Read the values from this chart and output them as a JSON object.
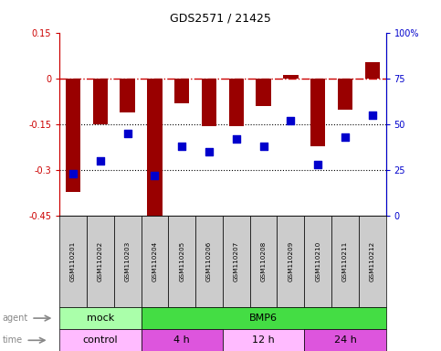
{
  "title": "GDS2571 / 21425",
  "samples": [
    "GSM110201",
    "GSM110202",
    "GSM110203",
    "GSM110204",
    "GSM110205",
    "GSM110206",
    "GSM110207",
    "GSM110208",
    "GSM110209",
    "GSM110210",
    "GSM110211",
    "GSM110212"
  ],
  "log2_ratio": [
    -0.37,
    -0.15,
    -0.11,
    -0.48,
    -0.08,
    -0.155,
    -0.155,
    -0.09,
    0.012,
    -0.22,
    -0.1,
    0.055
  ],
  "percentile": [
    23,
    30,
    45,
    22,
    38,
    35,
    42,
    38,
    52,
    28,
    43,
    55
  ],
  "ylim_left": [
    -0.45,
    0.15
  ],
  "ylim_right": [
    0,
    100
  ],
  "yticks_left": [
    -0.45,
    -0.3,
    -0.15,
    0.0,
    0.15
  ],
  "yticks_left_labels": [
    "-0.45",
    "-0.3",
    "-0.15",
    "0",
    "0.15"
  ],
  "yticks_right": [
    0,
    25,
    50,
    75,
    100
  ],
  "yticks_right_labels": [
    "0",
    "25",
    "50",
    "75",
    "100%"
  ],
  "bar_color": "#990000",
  "dot_color": "#0000cc",
  "hline_color": "#cc0000",
  "dot_line_color": "#000000",
  "agent_groups": [
    {
      "label": "mock",
      "start": 0,
      "end": 3,
      "color": "#aaffaa"
    },
    {
      "label": "BMP6",
      "start": 3,
      "end": 12,
      "color": "#44dd44"
    }
  ],
  "time_groups": [
    {
      "label": "control",
      "start": 0,
      "end": 3,
      "color": "#ffbbff"
    },
    {
      "label": "4 h",
      "start": 3,
      "end": 6,
      "color": "#dd55dd"
    },
    {
      "label": "12 h",
      "start": 6,
      "end": 9,
      "color": "#ffbbff"
    },
    {
      "label": "24 h",
      "start": 9,
      "end": 12,
      "color": "#dd55dd"
    }
  ],
  "legend_log2_color": "#990000",
  "legend_pct_color": "#0000cc",
  "tick_bg_color": "#cccccc",
  "bar_width": 0.55,
  "dot_size": 28
}
